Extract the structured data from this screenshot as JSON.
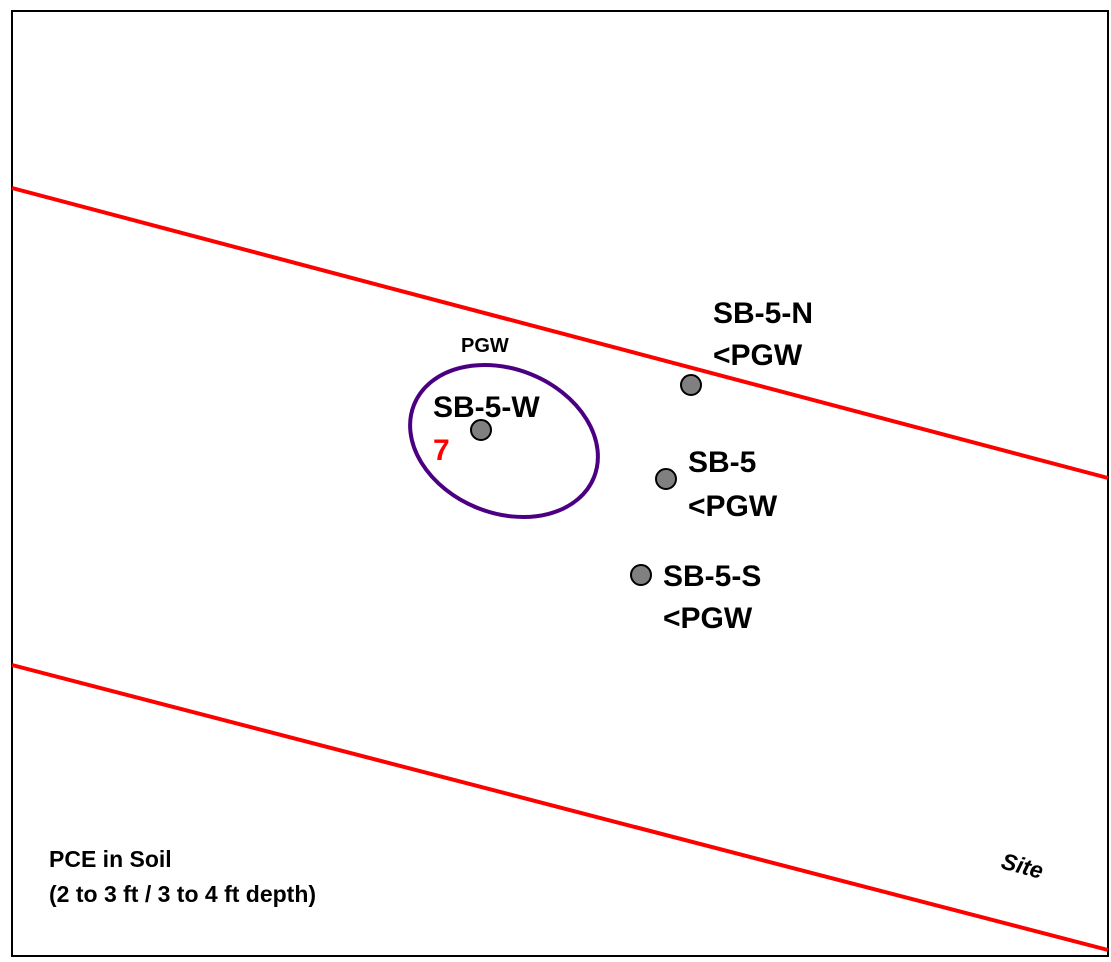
{
  "legend": {
    "line1": "PCE in Soil",
    "line2": "(2 to 3 ft / 3 to 4 ft depth)"
  },
  "site_label": "Site",
  "contour_label": "PGW",
  "samples": [
    {
      "id": "SB-5-N",
      "value": "<PGW"
    },
    {
      "id": "SB-5-W",
      "value": "7"
    },
    {
      "id": "SB-5",
      "value": "<PGW"
    },
    {
      "id": "SB-5-S",
      "value": "<PGW"
    }
  ],
  "colors": {
    "site_boundary": "#ff0000",
    "contour": "#4b0082",
    "sample_point": "#808080",
    "exceedance_value": "#ff0000"
  }
}
